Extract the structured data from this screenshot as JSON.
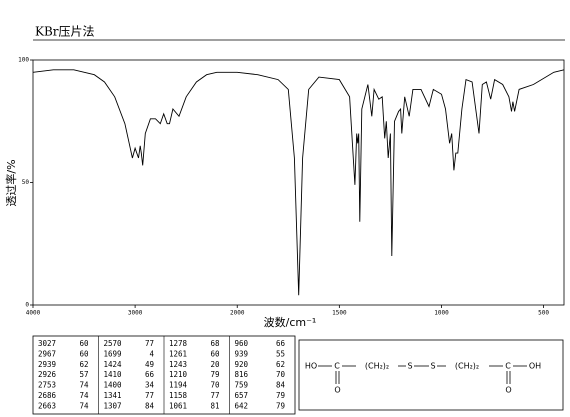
{
  "chart_data": {
    "type": "line",
    "title": "KBr压片法",
    "x_label": "波数/cm⁻¹",
    "y_label": "透过率/%",
    "xlim": [
      4000,
      400
    ],
    "x_expand_below": 2000,
    "x_expand_factor": 2,
    "xticks": [
      4000,
      3000,
      2000,
      1500,
      1000,
      500
    ],
    "ylim": [
      0,
      100
    ],
    "yticks": [
      0,
      50,
      100
    ],
    "color": "#000000",
    "x": [
      4000,
      3800,
      3600,
      3400,
      3300,
      3200,
      3100,
      3027,
      3000,
      2967,
      2950,
      2939,
      2926,
      2900,
      2850,
      2800,
      2753,
      2720,
      2686,
      2663,
      2630,
      2570,
      2500,
      2400,
      2300,
      2200,
      2100,
      2000,
      1900,
      1800,
      1750,
      1720,
      1699,
      1680,
      1650,
      1600,
      1500,
      1450,
      1424,
      1415,
      1410,
      1405,
      1400,
      1390,
      1360,
      1341,
      1330,
      1307,
      1290,
      1278,
      1270,
      1261,
      1250,
      1243,
      1230,
      1210,
      1200,
      1194,
      1180,
      1158,
      1140,
      1100,
      1061,
      1040,
      1000,
      980,
      960,
      950,
      939,
      930,
      920,
      900,
      880,
      850,
      816,
      800,
      780,
      759,
      740,
      700,
      670,
      657,
      650,
      642,
      620,
      550,
      450,
      400
    ],
    "values": [
      95,
      96,
      96,
      94,
      91,
      85,
      74,
      60,
      64,
      60,
      65,
      62,
      57,
      70,
      76,
      76,
      74,
      78,
      74,
      74,
      80,
      77,
      85,
      91,
      94,
      95,
      95,
      95,
      94,
      92,
      88,
      60,
      4,
      60,
      88,
      93,
      92,
      85,
      49,
      70,
      66,
      70,
      34,
      80,
      90,
      77,
      88,
      84,
      85,
      68,
      75,
      60,
      70,
      20,
      75,
      79,
      80,
      70,
      85,
      77,
      88,
      88,
      81,
      88,
      86,
      80,
      66,
      70,
      55,
      62,
      62,
      80,
      92,
      91,
      70,
      90,
      91,
      84,
      92,
      90,
      85,
      79,
      83,
      79,
      88,
      90,
      95,
      96
    ]
  },
  "peak_table": [
    [
      [
        3027,
        60
      ],
      [
        2967,
        60
      ],
      [
        2939,
        62
      ],
      [
        2926,
        57
      ],
      [
        2753,
        74
      ],
      [
        2686,
        74
      ],
      [
        2663,
        74
      ]
    ],
    [
      [
        2570,
        77
      ],
      [
        1699,
        4
      ],
      [
        1424,
        49
      ],
      [
        1410,
        66
      ],
      [
        1400,
        34
      ],
      [
        1341,
        77
      ],
      [
        1307,
        84
      ]
    ],
    [
      [
        1278,
        68
      ],
      [
        1261,
        60
      ],
      [
        1243,
        20
      ],
      [
        1210,
        79
      ],
      [
        1194,
        70
      ],
      [
        1158,
        77
      ],
      [
        1061,
        81
      ]
    ],
    [
      [
        960,
        66
      ],
      [
        939,
        55
      ],
      [
        920,
        62
      ],
      [
        816,
        70
      ],
      [
        759,
        84
      ],
      [
        657,
        79
      ],
      [
        642,
        79
      ]
    ]
  ],
  "structure": {
    "atoms": [
      "HO",
      "C",
      "(CH₂)₂",
      "S",
      "S",
      "(CH₂)₂",
      "C",
      "OH"
    ],
    "carbonyl_o": [
      "O",
      "O"
    ]
  }
}
